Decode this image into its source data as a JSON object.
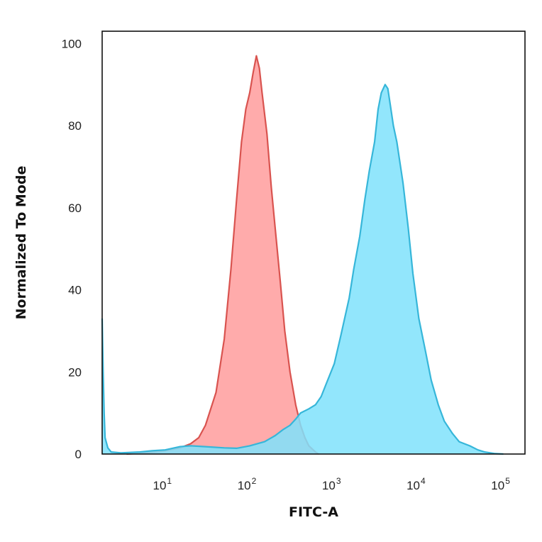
{
  "chart_data": {
    "type": "area",
    "title": "",
    "xlabel": "FITC-A",
    "ylabel": "Normalized To Mode",
    "xscale": "log",
    "xlim": [
      1.8,
      180000
    ],
    "ylim": [
      0,
      103
    ],
    "x_ticks": [
      {
        "base": "10",
        "exp": "1",
        "value": 10
      },
      {
        "base": "10",
        "exp": "2",
        "value": 100
      },
      {
        "base": "10",
        "exp": "3",
        "value": 1000
      },
      {
        "base": "10",
        "exp": "4",
        "value": 10000
      },
      {
        "base": "10",
        "exp": "5",
        "value": 100000
      }
    ],
    "y_ticks": [
      {
        "label": "0",
        "value": 0
      },
      {
        "label": "20",
        "value": 20
      },
      {
        "label": "40",
        "value": 40
      },
      {
        "label": "60",
        "value": 60
      },
      {
        "label": "80",
        "value": 80
      },
      {
        "label": "100",
        "value": 100
      }
    ],
    "grid": false,
    "legend": "none",
    "series": [
      {
        "fill": "#ff9c9c",
        "stroke": "#d9534f",
        "fill_opacity": 0.85,
        "points": [
          [
            3.5,
            0
          ],
          [
            6,
            0.3
          ],
          [
            10,
            0.8
          ],
          [
            15,
            1.5
          ],
          [
            20,
            2.5
          ],
          [
            25,
            4
          ],
          [
            30,
            7
          ],
          [
            40,
            15
          ],
          [
            50,
            28
          ],
          [
            60,
            45
          ],
          [
            70,
            62
          ],
          [
            80,
            76
          ],
          [
            90,
            84
          ],
          [
            100,
            88
          ],
          [
            110,
            93
          ],
          [
            120,
            97
          ],
          [
            130,
            94
          ],
          [
            140,
            88
          ],
          [
            160,
            78
          ],
          [
            180,
            65
          ],
          [
            200,
            55
          ],
          [
            230,
            42
          ],
          [
            260,
            30
          ],
          [
            300,
            20
          ],
          [
            350,
            12
          ],
          [
            400,
            7
          ],
          [
            450,
            4
          ],
          [
            500,
            2
          ],
          [
            600,
            0.5
          ],
          [
            650,
            0
          ]
        ]
      },
      {
        "fill": "#7fe2fb",
        "stroke": "#36b6d9",
        "fill_opacity": 0.85,
        "points": [
          [
            1.8,
            33
          ],
          [
            1.85,
            20
          ],
          [
            1.9,
            10
          ],
          [
            1.95,
            4
          ],
          [
            2.1,
            1.5
          ],
          [
            2.3,
            0.5
          ],
          [
            3,
            0.3
          ],
          [
            5,
            0.5
          ],
          [
            7,
            0.8
          ],
          [
            10,
            1
          ],
          [
            15,
            1.8
          ],
          [
            20,
            2
          ],
          [
            30,
            1.8
          ],
          [
            50,
            1.5
          ],
          [
            70,
            1.4
          ],
          [
            100,
            2
          ],
          [
            150,
            3
          ],
          [
            200,
            4.5
          ],
          [
            250,
            6
          ],
          [
            300,
            7
          ],
          [
            350,
            8.5
          ],
          [
            400,
            10
          ],
          [
            500,
            11
          ],
          [
            600,
            12
          ],
          [
            700,
            14
          ],
          [
            800,
            17
          ],
          [
            1000,
            22
          ],
          [
            1200,
            29
          ],
          [
            1500,
            38
          ],
          [
            1700,
            45
          ],
          [
            2000,
            53
          ],
          [
            2300,
            62
          ],
          [
            2600,
            69
          ],
          [
            3000,
            76
          ],
          [
            3300,
            84
          ],
          [
            3600,
            88
          ],
          [
            4000,
            90
          ],
          [
            4300,
            89
          ],
          [
            4600,
            85
          ],
          [
            5000,
            80
          ],
          [
            5500,
            76
          ],
          [
            6500,
            66
          ],
          [
            7500,
            55
          ],
          [
            8500,
            44
          ],
          [
            10000,
            33
          ],
          [
            12000,
            25
          ],
          [
            14000,
            18
          ],
          [
            17000,
            12
          ],
          [
            20000,
            8
          ],
          [
            25000,
            5
          ],
          [
            30000,
            3
          ],
          [
            40000,
            2
          ],
          [
            50000,
            1
          ],
          [
            60000,
            0.5
          ],
          [
            80000,
            0.1
          ],
          [
            100000,
            0
          ]
        ]
      }
    ]
  }
}
